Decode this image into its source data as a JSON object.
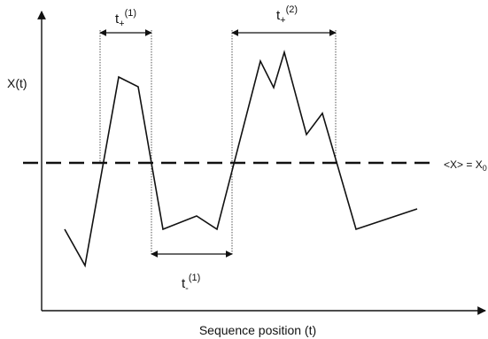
{
  "axes": {
    "y_label": "X(t)",
    "x_label": "Sequence position (t)"
  },
  "threshold": {
    "label_lhs": "<X> = X",
    "label_sub": "0"
  },
  "intervals": {
    "plus_1": {
      "base": "t",
      "sub": "+",
      "sup": "(1)"
    },
    "plus_2": {
      "base": "t",
      "sub": "+",
      "sup": "(2)"
    },
    "minus_1": {
      "base": "t",
      "sub": "-",
      "sup": "(1)"
    }
  },
  "colors": {
    "ink": "#111111",
    "guide": "#444444"
  }
}
